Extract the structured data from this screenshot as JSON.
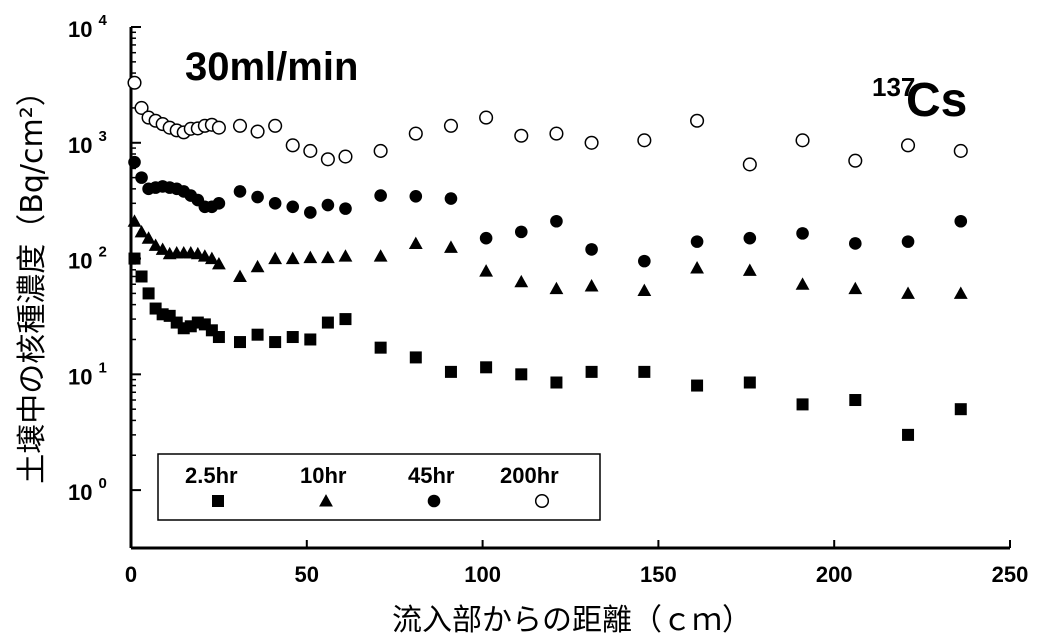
{
  "chart_data": {
    "type": "scatter",
    "title": "30ml/min",
    "isotope_mass": "137",
    "isotope_symbol": "Cs",
    "xlabel": "流入部からの距離（ｃｍ）",
    "ylabel": "土壌中の核種濃度（Bq/cm²）",
    "xlim": [
      0,
      250
    ],
    "ylim_log10": [
      -0.5,
      4
    ],
    "y_scale": "log",
    "x_ticks": [
      "0",
      "50",
      "100",
      "150",
      "200",
      "250"
    ],
    "y_ticks": [
      {
        "base": "10",
        "exp": "0"
      },
      {
        "base": "10",
        "exp": "1"
      },
      {
        "base": "10",
        "exp": "2"
      },
      {
        "base": "10",
        "exp": "3"
      },
      {
        "base": "10",
        "exp": "4"
      }
    ],
    "grid": false,
    "legend_position": "bottom-left",
    "series": [
      {
        "name": "2.5hr",
        "marker": "filled-square",
        "x": [
          1,
          3,
          5,
          7,
          9,
          11,
          13,
          15,
          17,
          19,
          21,
          23,
          25,
          31,
          36,
          41,
          46,
          51,
          56,
          61,
          71,
          81,
          91,
          101,
          111,
          121,
          131,
          146,
          161,
          176,
          191,
          206,
          221,
          236
        ],
        "y": [
          100,
          70,
          50,
          37,
          33,
          32,
          28,
          25,
          26,
          28,
          27,
          24,
          21,
          19,
          22,
          19,
          21,
          20,
          28,
          30,
          17,
          14,
          10.5,
          11.5,
          10,
          8.5,
          10.5,
          10.5,
          8,
          8.5,
          5.5,
          6,
          3,
          5
        ]
      },
      {
        "name": "10hr",
        "marker": "filled-triangle",
        "x": [
          1,
          3,
          5,
          7,
          9,
          11,
          13,
          15,
          17,
          19,
          21,
          23,
          25,
          31,
          36,
          41,
          46,
          51,
          56,
          61,
          71,
          81,
          91,
          101,
          111,
          121,
          131,
          146,
          161,
          176,
          191,
          206,
          221,
          236
        ],
        "y": [
          210,
          170,
          150,
          130,
          120,
          110,
          112,
          112,
          112,
          110,
          105,
          100,
          90,
          70,
          85,
          100,
          100,
          102,
          102,
          105,
          105,
          135,
          125,
          78,
          63,
          55,
          58,
          53,
          83,
          79,
          60,
          55,
          50,
          50
        ]
      },
      {
        "name": "45hr",
        "marker": "filled-circle",
        "x": [
          1,
          3,
          5,
          7,
          9,
          11,
          13,
          15,
          17,
          19,
          21,
          23,
          25,
          31,
          36,
          41,
          46,
          51,
          56,
          61,
          71,
          81,
          91,
          101,
          111,
          121,
          131,
          146,
          161,
          176,
          191,
          206,
          221,
          236
        ],
        "y": [
          680,
          500,
          400,
          410,
          420,
          410,
          400,
          380,
          350,
          320,
          280,
          280,
          300,
          380,
          340,
          300,
          280,
          250,
          290,
          270,
          350,
          345,
          330,
          150,
          170,
          210,
          120,
          95,
          140,
          150,
          165,
          135,
          140,
          210
        ]
      },
      {
        "name": "200hr",
        "marker": "open-circle",
        "x": [
          1,
          3,
          5,
          7,
          9,
          11,
          13,
          15,
          17,
          19,
          21,
          23,
          25,
          31,
          36,
          41,
          46,
          51,
          56,
          61,
          71,
          81,
          91,
          101,
          111,
          121,
          131,
          146,
          161,
          176,
          191,
          206,
          221,
          236
        ],
        "y": [
          3300,
          2000,
          1650,
          1550,
          1450,
          1350,
          1280,
          1230,
          1320,
          1330,
          1400,
          1430,
          1350,
          1400,
          1250,
          1400,
          950,
          850,
          720,
          760,
          850,
          1200,
          1400,
          1650,
          1150,
          1200,
          1000,
          1050,
          1550,
          650,
          1050,
          700,
          950,
          850
        ]
      }
    ]
  }
}
